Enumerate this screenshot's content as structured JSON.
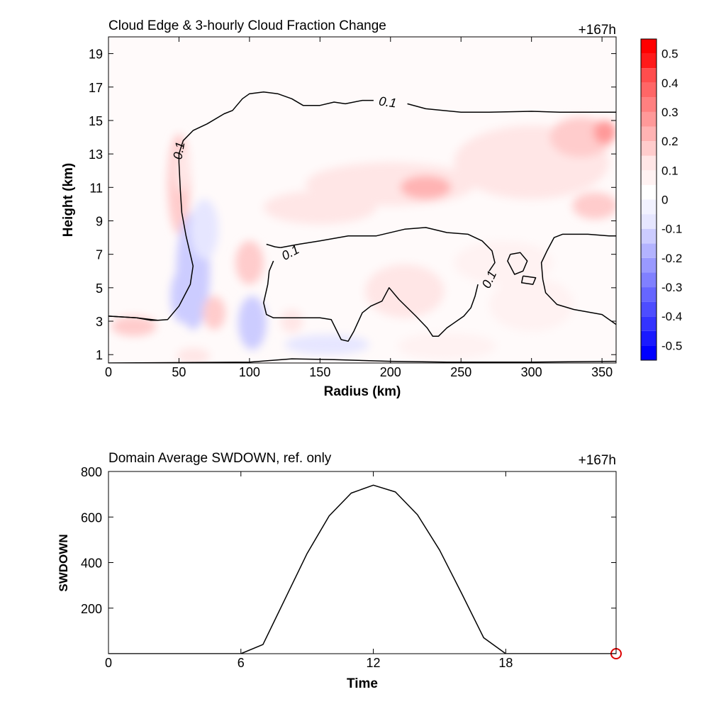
{
  "chart_data": [
    {
      "type": "heatmap",
      "title": "Cloud Edge & 3-hourly Cloud Fraction Change",
      "time_label": "+167h",
      "xlabel": "Radius (km)",
      "ylabel": "Height (km)",
      "xlim": [
        0,
        360
      ],
      "ylim": [
        0.5,
        20
      ],
      "xticks": [
        0,
        50,
        100,
        150,
        200,
        250,
        300,
        350
      ],
      "yticks": [
        1,
        3,
        5,
        7,
        9,
        11,
        13,
        15,
        17,
        19
      ],
      "colorbar": {
        "levels": [
          -0.55,
          -0.5,
          -0.45,
          -0.4,
          -0.35,
          -0.3,
          -0.25,
          -0.2,
          -0.15,
          -0.1,
          -0.05,
          0,
          0.05,
          0.1,
          0.15,
          0.2,
          0.25,
          0.3,
          0.35,
          0.4,
          0.45,
          0.5,
          0.55
        ],
        "colors": [
          "#0000ff",
          "#1a1aff",
          "#3333ff",
          "#4d4dff",
          "#6666ff",
          "#8080ff",
          "#9999ff",
          "#b3b3ff",
          "#ccccff",
          "#e6e6ff",
          "#f2f2ff",
          "#ffffff",
          "#fff2f2",
          "#ffe6e6",
          "#ffcccc",
          "#ffb3b3",
          "#ff9999",
          "#ff8080",
          "#ff6666",
          "#ff4d4d",
          "#ff1a1a",
          "#ff0000"
        ],
        "tick_labels": [
          "0.5",
          "0.4",
          "0.3",
          "0.2",
          "0.1",
          "0",
          "-0.1",
          "-0.2",
          "-0.3",
          "-0.4",
          "-0.5"
        ],
        "tick_values": [
          0.5,
          0.4,
          0.3,
          0.2,
          0.1,
          0,
          -0.1,
          -0.2,
          -0.3,
          -0.4,
          -0.5
        ]
      },
      "contour_level_label": "0.1",
      "blobs": [
        {
          "x": 50,
          "y": 11.2,
          "rx": 8,
          "ry": 3.0,
          "v": 0.15
        },
        {
          "x": 52,
          "y": 12.0,
          "rx": 5,
          "ry": 1.3,
          "v": 0.1
        },
        {
          "x": 60,
          "y": 6.0,
          "rx": 12,
          "ry": 3.5,
          "v": -0.15
        },
        {
          "x": 52,
          "y": 4.5,
          "rx": 8,
          "ry": 1.6,
          "v": -0.15
        },
        {
          "x": 68,
          "y": 8.5,
          "rx": 10,
          "ry": 1.8,
          "v": -0.1
        },
        {
          "x": 100,
          "y": 6.5,
          "rx": 10,
          "ry": 1.3,
          "v": 0.15
        },
        {
          "x": 102,
          "y": 2.9,
          "rx": 10,
          "ry": 1.6,
          "v": -0.15
        },
        {
          "x": 75,
          "y": 3.5,
          "rx": 8,
          "ry": 1.0,
          "v": 0.15
        },
        {
          "x": 18,
          "y": 2.7,
          "rx": 16,
          "ry": 0.6,
          "v": 0.15
        },
        {
          "x": 200,
          "y": 11.2,
          "rx": 60,
          "ry": 1.3,
          "v": 0.12
        },
        {
          "x": 225,
          "y": 11.0,
          "rx": 18,
          "ry": 0.7,
          "v": 0.2
        },
        {
          "x": 300,
          "y": 12.5,
          "rx": 55,
          "ry": 2.2,
          "v": 0.12
        },
        {
          "x": 335,
          "y": 14.0,
          "rx": 22,
          "ry": 1.2,
          "v": 0.18
        },
        {
          "x": 352,
          "y": 14.3,
          "rx": 8,
          "ry": 0.7,
          "v": 0.25
        },
        {
          "x": 345,
          "y": 9.9,
          "rx": 16,
          "ry": 0.8,
          "v": 0.15
        },
        {
          "x": 150,
          "y": 9.8,
          "rx": 40,
          "ry": 1.0,
          "v": 0.1
        },
        {
          "x": 210,
          "y": 4.8,
          "rx": 28,
          "ry": 1.6,
          "v": 0.1
        },
        {
          "x": 300,
          "y": 4.0,
          "rx": 30,
          "ry": 1.6,
          "v": 0.08
        },
        {
          "x": 240,
          "y": 1.5,
          "rx": 35,
          "ry": 0.8,
          "v": 0.08
        },
        {
          "x": 155,
          "y": 1.6,
          "rx": 30,
          "ry": 0.6,
          "v": -0.08
        },
        {
          "x": 130,
          "y": 3.0,
          "rx": 8,
          "ry": 0.7,
          "v": 0.12
        },
        {
          "x": 280,
          "y": 6.5,
          "rx": 35,
          "ry": 1.3,
          "v": 0.06
        },
        {
          "x": 60,
          "y": 0.9,
          "rx": 12,
          "ry": 0.5,
          "v": 0.1
        }
      ],
      "contours": [
        [
          [
            0,
            3.3
          ],
          [
            20,
            3.2
          ],
          [
            35,
            3.05
          ],
          [
            42,
            3.1
          ],
          [
            50,
            3.9
          ],
          [
            58,
            5.2
          ],
          [
            60,
            6.3
          ],
          [
            55,
            8.1
          ],
          [
            52,
            9.5
          ],
          [
            51,
            10.8
          ],
          [
            50,
            12.5
          ],
          [
            50,
            13.0
          ],
          [
            53,
            13.8
          ],
          [
            60,
            14.4
          ],
          [
            70,
            14.8
          ],
          [
            82,
            15.4
          ],
          [
            88,
            15.6
          ],
          [
            95,
            16.3
          ],
          [
            100,
            16.6
          ],
          [
            110,
            16.7
          ],
          [
            120,
            16.6
          ],
          [
            130,
            16.3
          ],
          [
            138,
            15.9
          ],
          [
            150,
            15.9
          ],
          [
            160,
            16.1
          ],
          [
            168,
            16.0
          ],
          [
            180,
            16.2
          ],
          [
            188,
            16.2
          ]
        ],
        [
          [
            212,
            16.0
          ],
          [
            225,
            15.7
          ],
          [
            250,
            15.5
          ],
          [
            270,
            15.5
          ],
          [
            300,
            15.55
          ],
          [
            320,
            15.5
          ],
          [
            360,
            15.5
          ]
        ],
        [
          [
            0,
            3.3
          ],
          [
            20,
            3.2
          ],
          [
            30,
            3.05
          ],
          [
            35,
            3.05
          ]
        ],
        [
          [
            122,
            7.4
          ],
          [
            135,
            7.6
          ],
          [
            150,
            7.8
          ],
          [
            170,
            8.1
          ],
          [
            190,
            8.1
          ],
          [
            210,
            8.5
          ],
          [
            225,
            8.6
          ],
          [
            240,
            8.3
          ],
          [
            255,
            8.2
          ],
          [
            265,
            7.8
          ],
          [
            272,
            7.2
          ],
          [
            274,
            6.5
          ],
          [
            270,
            6.0
          ]
        ],
        [
          [
            112,
            7.6
          ],
          [
            118,
            7.45
          ],
          [
            122,
            7.4
          ]
        ],
        [
          [
            262,
            5.2
          ],
          [
            260,
            4.5
          ],
          [
            257,
            3.8
          ],
          [
            252,
            3.3
          ],
          [
            240,
            2.6
          ],
          [
            234,
            2.1
          ],
          [
            230,
            2.1
          ],
          [
            226,
            2.6
          ],
          [
            218,
            3.3
          ],
          [
            206,
            4.3
          ],
          [
            199,
            5.0
          ],
          [
            194,
            4.2
          ],
          [
            186,
            3.9
          ],
          [
            180,
            3.5
          ],
          [
            174,
            2.4
          ],
          [
            170,
            1.8
          ],
          [
            165,
            1.9
          ],
          [
            158,
            3.1
          ],
          [
            150,
            3.2
          ],
          [
            140,
            3.2
          ],
          [
            130,
            3.2
          ],
          [
            117,
            3.2
          ],
          [
            112,
            3.4
          ],
          [
            110,
            4.1
          ],
          [
            113,
            5.2
          ],
          [
            114,
            6.0
          ],
          [
            117,
            6.6
          ]
        ],
        [
          [
            285,
            7.0
          ],
          [
            292,
            7.1
          ],
          [
            297,
            6.6
          ],
          [
            294,
            6.0
          ],
          [
            288,
            5.8
          ],
          [
            283,
            6.6
          ],
          [
            285,
            7.0
          ]
        ],
        [
          [
            294,
            5.7
          ],
          [
            303,
            5.6
          ],
          [
            301,
            5.2
          ],
          [
            293,
            5.3
          ],
          [
            294,
            5.7
          ]
        ],
        [
          [
            360,
            2.8
          ],
          [
            350,
            3.4
          ],
          [
            330,
            3.7
          ],
          [
            318,
            4.0
          ],
          [
            310,
            4.7
          ],
          [
            308,
            5.5
          ],
          [
            307,
            6.5
          ],
          [
            311,
            7.2
          ],
          [
            316,
            8.0
          ],
          [
            322,
            8.2
          ],
          [
            340,
            8.2
          ],
          [
            355,
            8.1
          ],
          [
            360,
            8.1
          ]
        ],
        [
          [
            0,
            0.5
          ],
          [
            100,
            0.55
          ],
          [
            130,
            0.75
          ],
          [
            160,
            0.7
          ],
          [
            200,
            0.6
          ],
          [
            240,
            0.55
          ],
          [
            300,
            0.55
          ],
          [
            360,
            0.6
          ]
        ]
      ],
      "contour_labels": [
        {
          "x": 50,
          "y": 13.2,
          "text": "0.1",
          "angle": -80
        },
        {
          "x": 198,
          "y": 16.1,
          "text": "0.1",
          "angle": 8
        },
        {
          "x": 129,
          "y": 7.1,
          "text": "0.1",
          "angle": -28
        },
        {
          "x": 270,
          "y": 5.5,
          "text": "0.1",
          "angle": -65
        }
      ]
    },
    {
      "type": "line",
      "title": "Domain Average SWDOWN, ref. only",
      "time_label": "+167h",
      "xlabel": "Time",
      "ylabel": "SWDOWN",
      "xlim": [
        0,
        23
      ],
      "ylim": [
        0,
        800
      ],
      "xticks": [
        0,
        6,
        12,
        18
      ],
      "yticks": [
        200,
        400,
        600,
        800
      ],
      "x": [
        0,
        1,
        2,
        3,
        4,
        5,
        6,
        7,
        8,
        9,
        10,
        11,
        12,
        13,
        14,
        15,
        16,
        17,
        18,
        19,
        20,
        21,
        22,
        23
      ],
      "values": [
        0,
        0,
        0,
        0,
        0,
        0,
        0,
        40,
        240,
        440,
        605,
        705,
        740,
        710,
        610,
        455,
        265,
        70,
        0,
        0,
        0,
        0,
        0,
        0
      ],
      "marker": {
        "x": 23,
        "y": 0,
        "color": "#dd0000"
      }
    }
  ]
}
